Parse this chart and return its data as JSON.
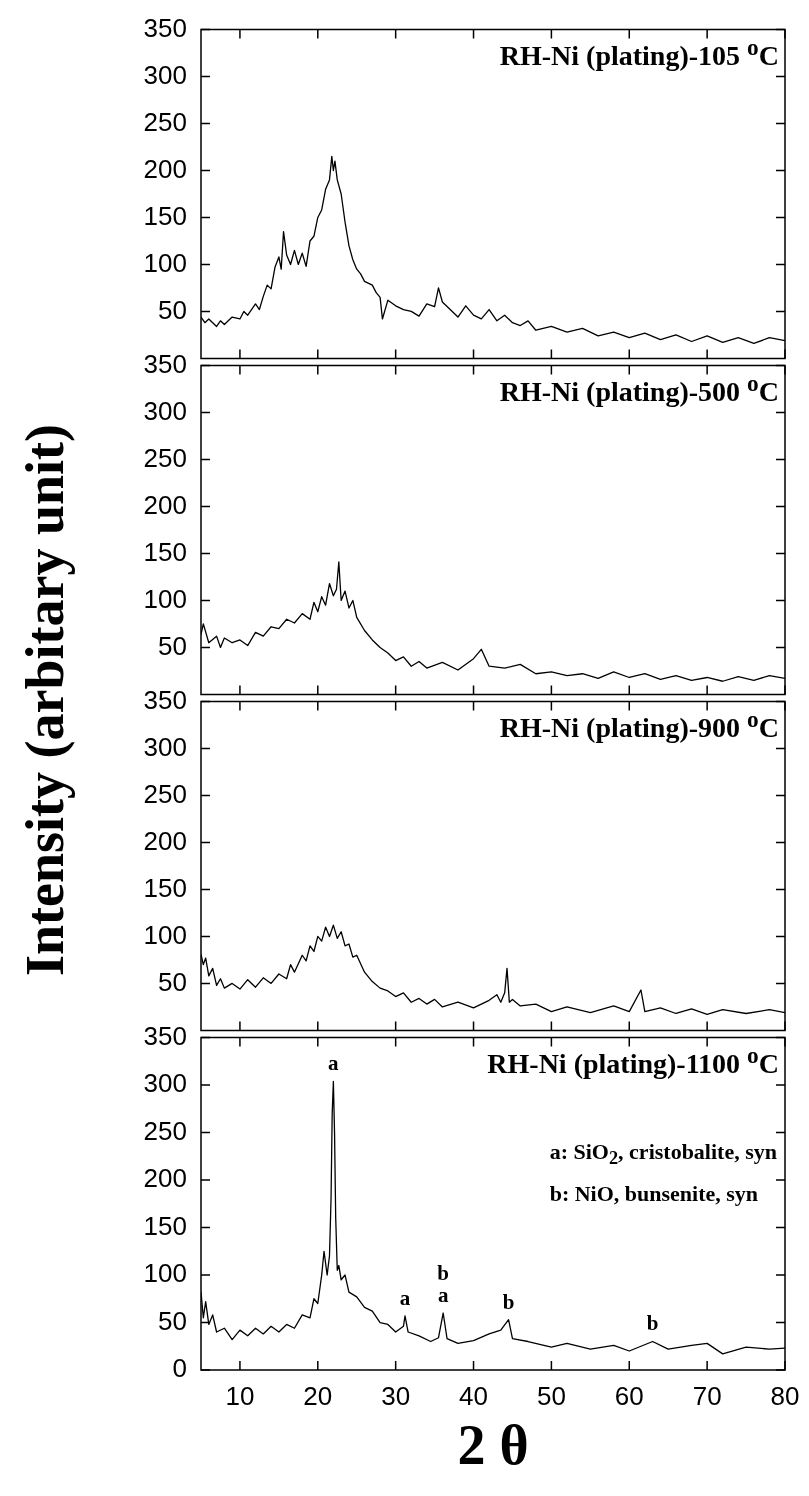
{
  "chart_data": [
    {
      "type": "line",
      "title": "RH-Ni (plating)-105 $^{o}$C",
      "x": [
        5,
        5.5,
        6,
        7,
        7.5,
        8,
        9,
        10,
        10.5,
        11,
        12,
        12.5,
        13,
        13.5,
        14,
        14.5,
        15,
        15.3,
        15.6,
        16,
        16.5,
        17,
        17.5,
        18,
        18.5,
        19,
        19.5,
        20,
        20.5,
        21,
        21.5,
        21.8,
        22,
        22.2,
        22.5,
        23,
        23.5,
        24,
        24.5,
        25,
        25.5,
        26,
        27,
        27.5,
        28,
        28.3,
        29,
        30,
        31,
        32,
        33,
        34,
        35,
        35.5,
        36,
        37,
        38,
        39,
        40,
        41,
        42,
        43,
        44,
        45,
        46,
        47,
        48,
        50,
        52,
        54,
        56,
        58,
        60,
        62,
        64,
        66,
        68,
        70,
        72,
        74,
        76,
        78,
        80
      ],
      "series": [
        {
          "color": "#000000",
          "values": [
            44,
            38,
            42,
            34,
            40,
            36,
            44,
            42,
            50,
            46,
            58,
            52,
            66,
            78,
            74,
            97,
            108,
            95,
            135,
            110,
            100,
            115,
            100,
            112,
            98,
            125,
            130,
            150,
            158,
            180,
            190,
            215,
            200,
            210,
            190,
            175,
            145,
            120,
            105,
            95,
            90,
            82,
            78,
            70,
            65,
            42,
            62,
            56,
            52,
            50,
            45,
            58,
            55,
            75,
            60,
            52,
            44,
            56,
            46,
            42,
            52,
            40,
            46,
            38,
            35,
            40,
            30,
            34,
            28,
            32,
            24,
            28,
            22,
            27,
            20,
            25,
            18,
            24,
            17,
            22,
            16,
            22,
            19
          ]
        }
      ],
      "xlim": [
        5,
        80
      ],
      "xticks": [
        10,
        20,
        30,
        40,
        50,
        60,
        70,
        80
      ],
      "ylim": [
        0,
        350
      ],
      "yticks": [
        50,
        100,
        150,
        200,
        250,
        300,
        350
      ],
      "tick_labels": "y"
    },
    {
      "type": "line",
      "title": "RH-Ni (plating)-500 $^{o}$C",
      "x": [
        5,
        5.3,
        6,
        7,
        7.5,
        8,
        9,
        10,
        11,
        12,
        13,
        14,
        15,
        16,
        17,
        18,
        19,
        19.5,
        20,
        20.5,
        21,
        21.5,
        22,
        22.4,
        22.7,
        23,
        23.5,
        24,
        24.5,
        25,
        26,
        27,
        28,
        29,
        30,
        31,
        32,
        33,
        34,
        36,
        38,
        40,
        41,
        42,
        44,
        46,
        48,
        50,
        52,
        54,
        56,
        58,
        60,
        62,
        64,
        66,
        68,
        70,
        72,
        74,
        76,
        78,
        80
      ],
      "series": [
        {
          "color": "#000000",
          "values": [
            64,
            75,
            55,
            62,
            50,
            60,
            55,
            58,
            52,
            66,
            62,
            72,
            70,
            80,
            76,
            86,
            80,
            98,
            88,
            104,
            95,
            118,
            105,
            112,
            141,
            100,
            110,
            92,
            100,
            82,
            68,
            58,
            50,
            44,
            36,
            40,
            30,
            35,
            28,
            34,
            26,
            38,
            48,
            30,
            28,
            32,
            22,
            24,
            20,
            22,
            17,
            24,
            18,
            22,
            16,
            20,
            15,
            18,
            14,
            19,
            15,
            20,
            17
          ]
        }
      ],
      "xlim": [
        5,
        80
      ],
      "xticks": [
        10,
        20,
        30,
        40,
        50,
        60,
        70,
        80
      ],
      "ylim": [
        0,
        350
      ],
      "yticks": [
        50,
        100,
        150,
        200,
        250,
        300,
        350
      ],
      "tick_labels": "y"
    },
    {
      "type": "line",
      "title": "RH-Ni (plating)-900 $^{o}$C",
      "x": [
        5,
        5.3,
        5.6,
        6,
        6.5,
        7,
        7.5,
        8,
        9,
        10,
        11,
        12,
        13,
        14,
        15,
        16,
        16.5,
        17,
        18,
        18.5,
        19,
        19.5,
        20,
        20.5,
        21,
        21.5,
        22,
        22.5,
        23,
        23.5,
        24,
        24.5,
        25,
        26,
        27,
        28,
        29,
        30,
        31,
        32,
        33,
        34,
        35,
        36,
        38,
        40,
        42,
        43,
        43.5,
        44,
        44.3,
        44.6,
        45,
        46,
        48,
        50,
        52,
        55,
        58,
        60,
        61.5,
        62,
        64,
        66,
        68,
        70,
        72,
        75,
        78,
        80
      ],
      "series": [
        {
          "color": "#000000",
          "values": [
            81,
            70,
            77,
            58,
            66,
            48,
            55,
            45,
            50,
            44,
            54,
            46,
            56,
            50,
            60,
            55,
            70,
            62,
            80,
            74,
            90,
            84,
            100,
            95,
            110,
            100,
            112,
            98,
            105,
            90,
            92,
            78,
            80,
            62,
            52,
            45,
            42,
            36,
            40,
            30,
            34,
            28,
            33,
            25,
            30,
            24,
            32,
            38,
            30,
            40,
            66,
            30,
            33,
            26,
            28,
            20,
            25,
            19,
            26,
            20,
            43,
            20,
            24,
            18,
            23,
            17,
            22,
            18,
            22,
            19
          ]
        }
      ],
      "xlim": [
        5,
        80
      ],
      "xticks": [
        10,
        20,
        30,
        40,
        50,
        60,
        70,
        80
      ],
      "ylim": [
        0,
        350
      ],
      "yticks": [
        50,
        100,
        150,
        200,
        250,
        300,
        350
      ],
      "tick_labels": "y"
    },
    {
      "type": "line",
      "title": "RH-Ni (plating)-1100 $^{o}$C",
      "xlabel": "2 θ",
      "ylabel": "Intensity (arbitary unit)",
      "x": [
        5,
        5.3,
        5.6,
        6,
        6.5,
        7,
        8,
        9,
        10,
        11,
        12,
        13,
        14,
        15,
        16,
        17,
        18,
        19,
        19.5,
        20,
        20.5,
        20.8,
        21.2,
        21.5,
        21.7,
        21.85,
        22,
        22.15,
        22.3,
        22.5,
        22.7,
        23,
        23.5,
        24,
        25,
        26,
        27,
        28,
        29,
        30,
        31,
        31.2,
        31.6,
        33,
        34.5,
        35.5,
        36.1,
        36.6,
        38,
        40,
        42,
        43.5,
        44.5,
        45,
        47,
        50,
        52,
        55,
        58,
        60,
        63,
        65,
        68,
        70,
        72,
        75,
        78,
        80
      ],
      "series": [
        {
          "color": "#000000",
          "values": [
            82,
            55,
            72,
            48,
            58,
            40,
            44,
            32,
            42,
            36,
            44,
            38,
            46,
            40,
            48,
            44,
            58,
            55,
            75,
            70,
            100,
            125,
            100,
            120,
            180,
            270,
            304,
            250,
            160,
            105,
            110,
            95,
            100,
            82,
            77,
            66,
            62,
            50,
            48,
            40,
            46,
            57,
            40,
            36,
            30,
            34,
            60,
            33,
            28,
            31,
            38,
            42,
            53,
            33,
            30,
            24,
            28,
            22,
            26,
            20,
            30,
            22,
            26,
            28,
            17,
            24,
            22,
            23
          ]
        }
      ],
      "xlim": [
        5,
        80
      ],
      "xticks": [
        10,
        20,
        30,
        40,
        50,
        60,
        70,
        80
      ],
      "ylim": [
        0,
        350
      ],
      "yticks": [
        0,
        50,
        100,
        150,
        200,
        250,
        300,
        350
      ],
      "annotations": [
        {
          "text": "a",
          "x": 22,
          "y": 304
        },
        {
          "text": "a",
          "x": 31.2,
          "y": 57
        },
        {
          "text": "a",
          "x": 36.1,
          "y": 60
        },
        {
          "text": "b",
          "x": 36.1,
          "y": 60
        },
        {
          "text": "b",
          "x": 44.5,
          "y": 53
        },
        {
          "text": "b",
          "x": 63,
          "y": 30
        },
        "a: SiO$_{2}$, cristobalite, syn",
        "b: NiO, bunsenite, syn"
      ]
    }
  ]
}
